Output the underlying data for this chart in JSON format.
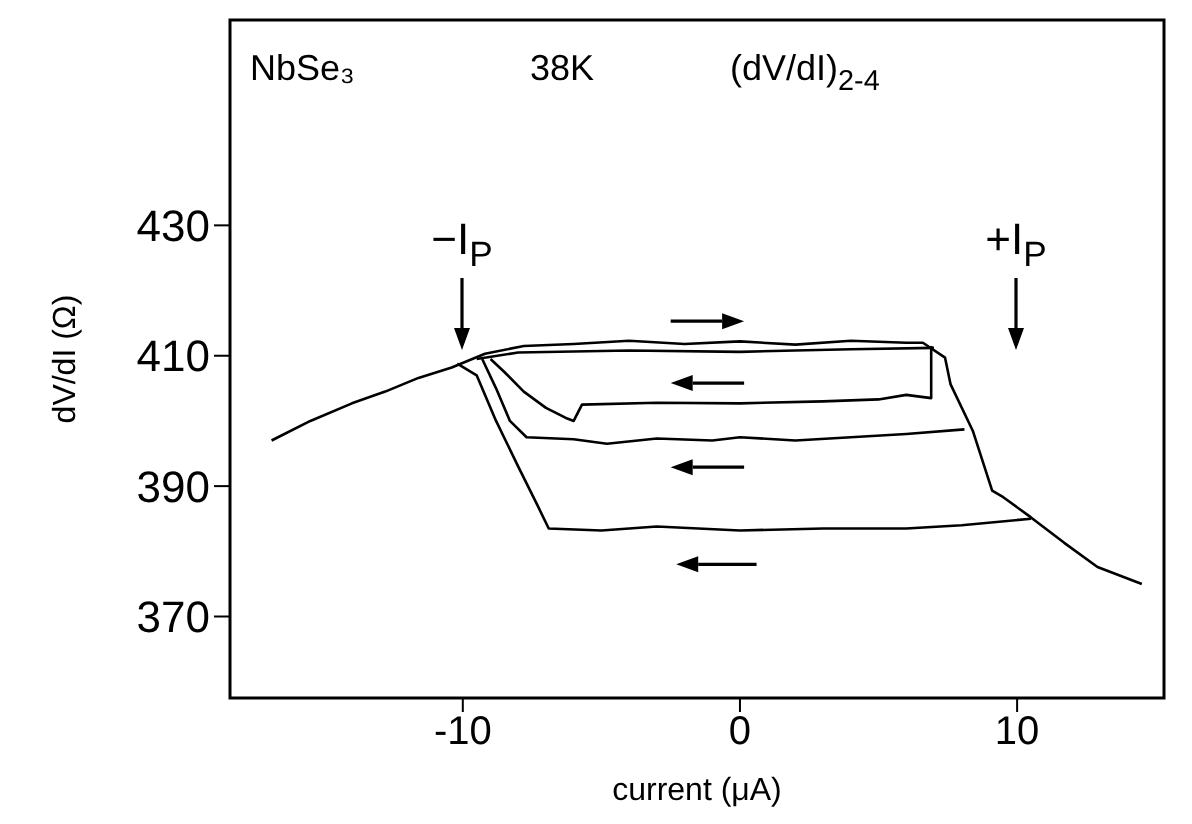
{
  "chart_data": {
    "type": "line",
    "xlabel": "current (μA)",
    "ylabel": "dV/dI (Ω)",
    "xlim": [
      -18.4,
      15.3
    ],
    "xticks": [
      -10,
      0,
      10
    ],
    "ylim": [
      357.5,
      461.5
    ],
    "yticks": [
      370,
      390,
      410,
      430
    ],
    "grid": false,
    "legend": false,
    "marker": "none",
    "line_style": "solid",
    "annotations": [
      "NbSe₃",
      "38K",
      "(dV/dI)$_{2-4}$",
      "−I$_{P}$",
      "+I$_{P}$"
    ],
    "series": [
      {
        "color": "#000000",
        "x": [
          -16.9,
          -15.5,
          -14.0,
          -12.8,
          -11.6,
          -10.4,
          -9.2,
          -7.8,
          -6,
          -4,
          -2,
          0,
          2,
          4,
          6,
          6.6,
          7.4,
          7.6,
          8.4,
          9.1,
          9.5,
          10.5,
          11.7,
          12.9,
          14.5
        ],
        "values": [
          397,
          400,
          402.7,
          404.5,
          406.6,
          408.2,
          410.3,
          411.5,
          411.8,
          412.3,
          411.8,
          412.2,
          411.7,
          412.3,
          412,
          412,
          409.7,
          405.6,
          398.5,
          389.3,
          388.3,
          385.2,
          381.3,
          377.6,
          375
        ]
      },
      {
        "color": "#000000",
        "x": [
          -9.5,
          -8,
          -4,
          0,
          4,
          7
        ],
        "values": [
          409.5,
          410.5,
          410.8,
          410.6,
          411,
          411.2
        ]
      },
      {
        "color": "#000000",
        "x": [
          -9.0,
          -8.5,
          -7.8,
          -7.0,
          -6.3,
          -6.0,
          -5.7,
          -3,
          0,
          3,
          5,
          6,
          6.9,
          6.9
        ],
        "values": [
          409.5,
          407.5,
          404.5,
          402,
          400.5,
          400,
          402.5,
          402.8,
          402.7,
          403,
          403.3,
          404,
          403.5,
          411.5
        ]
      },
      {
        "color": "#000000",
        "x": [
          -9.3,
          -8.8,
          -8.3,
          -7.7,
          -6,
          -4.8,
          -3,
          -1,
          0,
          2,
          4,
          6,
          8.1
        ],
        "values": [
          409.5,
          405,
          400,
          397.5,
          397.2,
          396.5,
          397.3,
          397,
          397.5,
          397,
          397.5,
          398,
          398.7
        ]
      },
      {
        "color": "#000000",
        "x": [
          -10.2,
          -9.5,
          -8.8,
          -8.0,
          -7.3,
          -6.9,
          -5,
          -3,
          0,
          3,
          6,
          8,
          10.5
        ],
        "values": [
          408.8,
          407,
          400,
          393,
          387,
          383.5,
          383.2,
          383.8,
          383.2,
          383.5,
          383.5,
          384,
          385
        ]
      }
    ]
  }
}
